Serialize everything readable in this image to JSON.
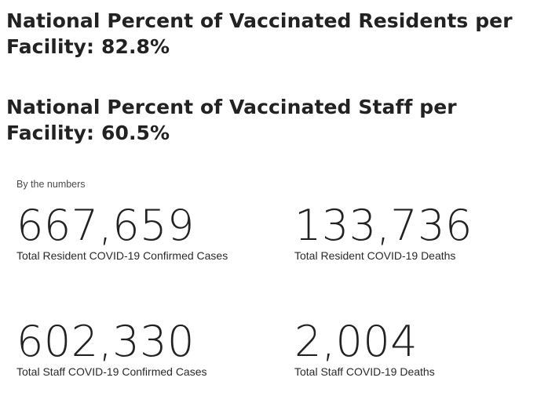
{
  "headlines": {
    "residents": "National Percent of Vaccinated Residents per Facility:  82.8%",
    "staff": "National Percent of Vaccinated Staff per Facility: 60.5%"
  },
  "numbers": {
    "label": "By the numbers",
    "stats": [
      {
        "value": "667,659",
        "caption": "Total Resident COVID-19 Confirmed Cases"
      },
      {
        "value": "133,736",
        "caption": "Total Resident COVID-19 Deaths"
      },
      {
        "value": "602,330",
        "caption": "Total Staff COVID-19 Confirmed Cases"
      },
      {
        "value": "2,004",
        "caption": "Total Staff COVID-19 Deaths"
      }
    ]
  }
}
